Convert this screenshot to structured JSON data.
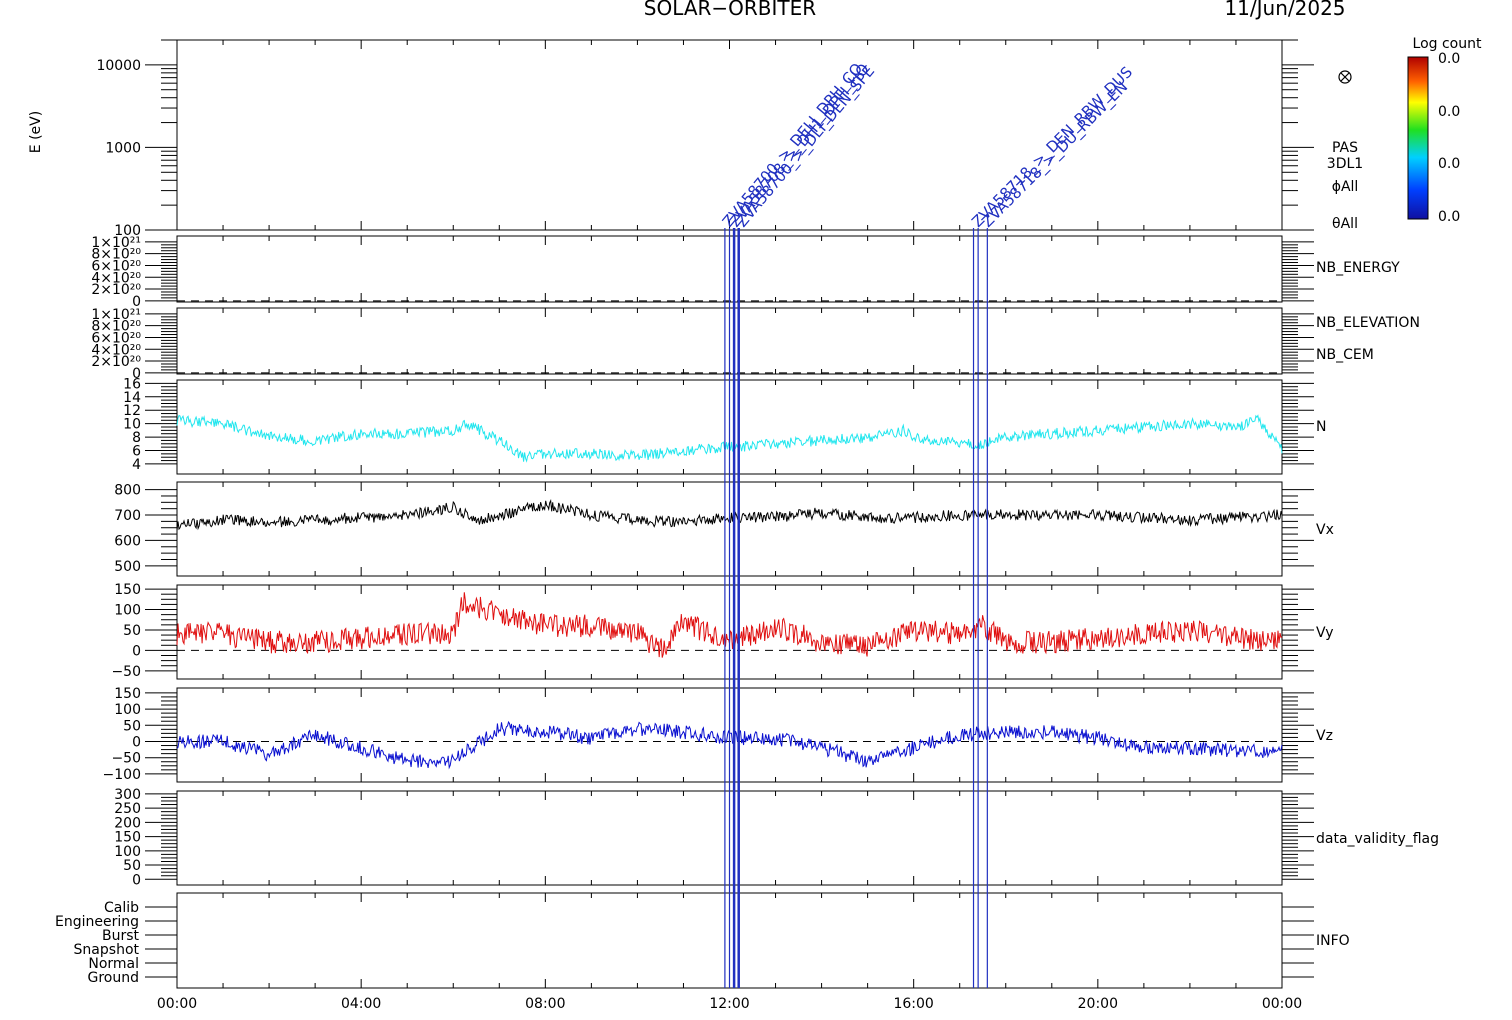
{
  "header": {
    "title": "SOLAR−ORBITER",
    "date": "11/Jun/2025"
  },
  "colorbar": {
    "title": "Log count",
    "ticks": [
      "0.0",
      "0.0",
      "0.0",
      "0.0"
    ]
  },
  "panel_labels": {
    "energy_ylabel": "E (eV)",
    "pas": "PAS",
    "dl": "3DL1",
    "phi": "ϕAll",
    "theta": "θAll",
    "nb_energy": "NB_ENERGY",
    "nb_elevation": "NB_ELEVATION",
    "nb_cem": "NB_CEM",
    "n": "N",
    "vx": "Vx",
    "vy": "Vy",
    "vz": "Vz",
    "validity": "data_validity_flag",
    "info": "INFO"
  },
  "colors": {
    "n": "#22e6ee",
    "vx": "#000000",
    "vy": "#e01010",
    "vz": "#0a10d0",
    "annotation": "#2030c0",
    "nb_energy": "#22cc22",
    "nb_cem": "#2030c0"
  },
  "annotations": {
    "event_a": [
      "ZVA58700_>_DELI_DPH_CO",
      "ZVA58708_>_DH1_DPH_HO",
      "ZVA58700_>_DLI_DEN_SPE"
    ],
    "event_b": [
      "ZVA58718_>_DEN_RBW_DUS",
      "ZVA58718_>_DU_RBW_EN"
    ]
  },
  "chart_data": [
    {
      "type": "heatmap",
      "name_printed": "",
      "ylabel": "E (eV)",
      "yscale": "log",
      "ylim": [
        100,
        20000
      ],
      "yticks": [
        "10000",
        "1000",
        "100"
      ],
      "yticks_values": [
        10000,
        1000,
        100
      ]
    },
    {
      "type": "line",
      "ylim": [
        -2e+19,
        1.1e+21
      ],
      "yticks": [
        "1×10²¹",
        "8×10²⁰",
        "6×10²⁰",
        "4×10²⁰",
        "2×10²⁰",
        "0"
      ],
      "yticks_values": [
        1e+21,
        8e+20,
        6e+20,
        4e+20,
        2e+20,
        0
      ],
      "series_labels": [
        "NB_ENERGY"
      ]
    },
    {
      "type": "line",
      "ylim": [
        -2e+19,
        1.1e+21
      ],
      "yticks": [
        "1×10²¹",
        "8×10²⁰",
        "6×10²⁰",
        "4×10²⁰",
        "2×10²⁰",
        "0"
      ],
      "yticks_values": [
        1e+21,
        8e+20,
        6e+20,
        4e+20,
        2e+20,
        0
      ],
      "series_labels": [
        "NB_ELEVATION",
        "NB_CEM"
      ]
    },
    {
      "type": "line",
      "series_name": "N",
      "ylim": [
        2.5,
        16.5
      ],
      "yticks": [
        "16",
        "14",
        "12",
        "10",
        "8",
        "6",
        "4"
      ],
      "yticks_values": [
        16,
        14,
        12,
        10,
        8,
        6,
        4
      ],
      "x": [
        0,
        1,
        2,
        3,
        4,
        5,
        6,
        6.3,
        7,
        7.5,
        8,
        9,
        10,
        11,
        12,
        13,
        14,
        15,
        15.8,
        16,
        17,
        17.5,
        18,
        19,
        20,
        21,
        22,
        23,
        23.5,
        24
      ],
      "y": [
        10.5,
        10,
        8,
        7.5,
        8.5,
        8.5,
        9,
        10,
        7.5,
        5,
        5.5,
        5.5,
        5.2,
        6,
        6.5,
        7,
        7.5,
        8,
        9,
        8,
        7,
        7,
        8,
        8.5,
        9,
        9.5,
        10,
        9.5,
        10.5,
        6
      ]
    },
    {
      "type": "line",
      "series_name": "Vx",
      "ylim": [
        460,
        830
      ],
      "yticks": [
        "800",
        "700",
        "600",
        "500"
      ],
      "yticks_values": [
        800,
        700,
        600,
        500
      ],
      "x": [
        0,
        1,
        2,
        3,
        4,
        5,
        6,
        6.5,
        7,
        8,
        9,
        10,
        11,
        12,
        13,
        14,
        15,
        16,
        17,
        18,
        19,
        20,
        21,
        22,
        23,
        24
      ],
      "y": [
        660,
        680,
        670,
        680,
        690,
        700,
        730,
        680,
        700,
        740,
        700,
        680,
        670,
        690,
        690,
        710,
        690,
        690,
        700,
        700,
        700,
        700,
        690,
        680,
        690,
        700
      ]
    },
    {
      "type": "line",
      "series_name": "Vy",
      "ylim": [
        -70,
        160
      ],
      "yticks": [
        "150",
        "100",
        "50",
        "0",
        "−50"
      ],
      "yticks_values": [
        150,
        100,
        50,
        0,
        -50
      ],
      "x": [
        0,
        1,
        2,
        3,
        4,
        5,
        6,
        6.2,
        7,
        8,
        9,
        10,
        10.5,
        11,
        12,
        13,
        14,
        15,
        16,
        17,
        17.5,
        18,
        19,
        20,
        21,
        22,
        23,
        24
      ],
      "y": [
        40,
        40,
        20,
        20,
        30,
        40,
        40,
        120,
        90,
        60,
        60,
        40,
        0,
        70,
        20,
        60,
        20,
        10,
        50,
        40,
        60,
        20,
        20,
        30,
        40,
        50,
        30,
        20
      ]
    },
    {
      "type": "line",
      "series_name": "Vz",
      "ylim": [
        -125,
        165
      ],
      "yticks": [
        "150",
        "100",
        "50",
        "0",
        "−50",
        "−100"
      ],
      "yticks_values": [
        150,
        100,
        50,
        0,
        -50,
        -100
      ],
      "x": [
        0,
        1,
        2,
        3,
        4,
        5,
        6,
        7,
        8,
        9,
        10,
        11,
        12,
        13,
        14,
        15,
        16,
        17,
        18,
        19,
        20,
        21,
        22,
        23,
        24
      ],
      "y": [
        0,
        0,
        -40,
        20,
        -20,
        -60,
        -60,
        40,
        30,
        10,
        40,
        30,
        10,
        10,
        -20,
        -60,
        -20,
        20,
        30,
        30,
        10,
        -20,
        -20,
        -30,
        -30
      ]
    },
    {
      "type": "line",
      "ylim": [
        -20,
        310
      ],
      "yticks": [
        "300",
        "250",
        "200",
        "150",
        "100",
        "50",
        "0"
      ],
      "yticks_values": [
        300,
        250,
        200,
        150,
        100,
        50,
        0
      ],
      "series_labels": [
        "data_validity_flag"
      ]
    },
    {
      "type": "table",
      "series_labels": [
        "INFO"
      ],
      "yticks": [
        "Calib",
        "Engineering",
        "Burst",
        "Snapshot",
        "Normal",
        "Ground"
      ]
    }
  ],
  "xaxis": {
    "ticks": [
      "00:00",
      "04:00",
      "08:00",
      "12:00",
      "16:00",
      "20:00",
      "00:00"
    ],
    "ticks_values": [
      0,
      4,
      8,
      12,
      16,
      20,
      24
    ],
    "range": [
      0,
      24
    ]
  },
  "event_lines": [
    11.9,
    12.0,
    12.1,
    12.2,
    17.3,
    17.4,
    17.6
  ]
}
